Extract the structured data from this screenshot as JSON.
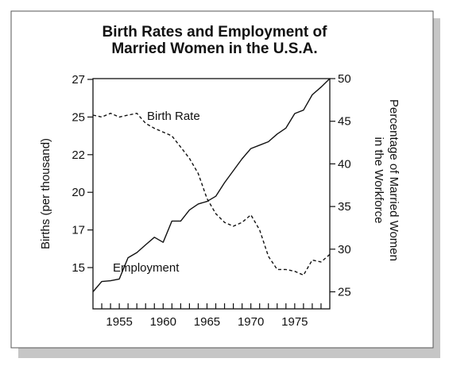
{
  "chart_data": {
    "type": "line",
    "title_lines": [
      "Birth Rates and Employment of",
      "Married Women in the U.S.A."
    ],
    "xlim": [
      1952,
      1979
    ],
    "x_ticks": [
      1955,
      1960,
      1965,
      1970,
      1975
    ],
    "left_axis": {
      "label": "Births (per thousand)",
      "ticks": [
        15,
        17,
        20,
        22,
        25,
        27
      ]
    },
    "right_axis": {
      "label_lines": [
        "Percentage of Married Women",
        "in the Workforce"
      ],
      "ylim": [
        23,
        50
      ],
      "ticks": [
        25,
        30,
        35,
        40,
        45,
        50
      ]
    },
    "grid": false,
    "series": [
      {
        "name": "Birth Rate",
        "axis": "left",
        "style": "dashed",
        "color": "#111111",
        "x": [
          1952,
          1953,
          1954,
          1955,
          1956,
          1957,
          1958,
          1959,
          1960,
          1961,
          1962,
          1963,
          1964,
          1965,
          1966,
          1967,
          1968,
          1969,
          1970,
          1971,
          1972,
          1973,
          1974,
          1975,
          1976,
          1977,
          1978,
          1979
        ],
        "values": [
          25.1,
          25.0,
          25.2,
          25.0,
          25.1,
          25.2,
          24.5,
          24.1,
          23.8,
          23.5,
          22.6,
          21.8,
          21.0,
          19.5,
          18.3,
          17.6,
          17.3,
          17.6,
          18.2,
          17.0,
          15.6,
          14.9,
          14.9,
          14.8,
          14.6,
          15.4,
          15.3,
          15.7
        ]
      },
      {
        "name": "Employment",
        "axis": "right",
        "style": "solid",
        "color": "#111111",
        "x": [
          1952,
          1953,
          1954,
          1955,
          1956,
          1957,
          1958,
          1959,
          1960,
          1961,
          1962,
          1963,
          1964,
          1965,
          1966,
          1967,
          1968,
          1969,
          1970,
          1971,
          1972,
          1973,
          1974,
          1975,
          1976,
          1977,
          1978,
          1979
        ],
        "values": [
          25.0,
          26.2,
          26.3,
          26.5,
          29.0,
          29.6,
          30.5,
          31.4,
          30.8,
          33.3,
          33.3,
          34.6,
          35.3,
          35.6,
          36.2,
          37.8,
          39.2,
          40.6,
          41.8,
          42.2,
          42.6,
          43.5,
          44.2,
          45.9,
          46.3,
          48.1,
          49.0,
          50.0
        ]
      }
    ]
  }
}
